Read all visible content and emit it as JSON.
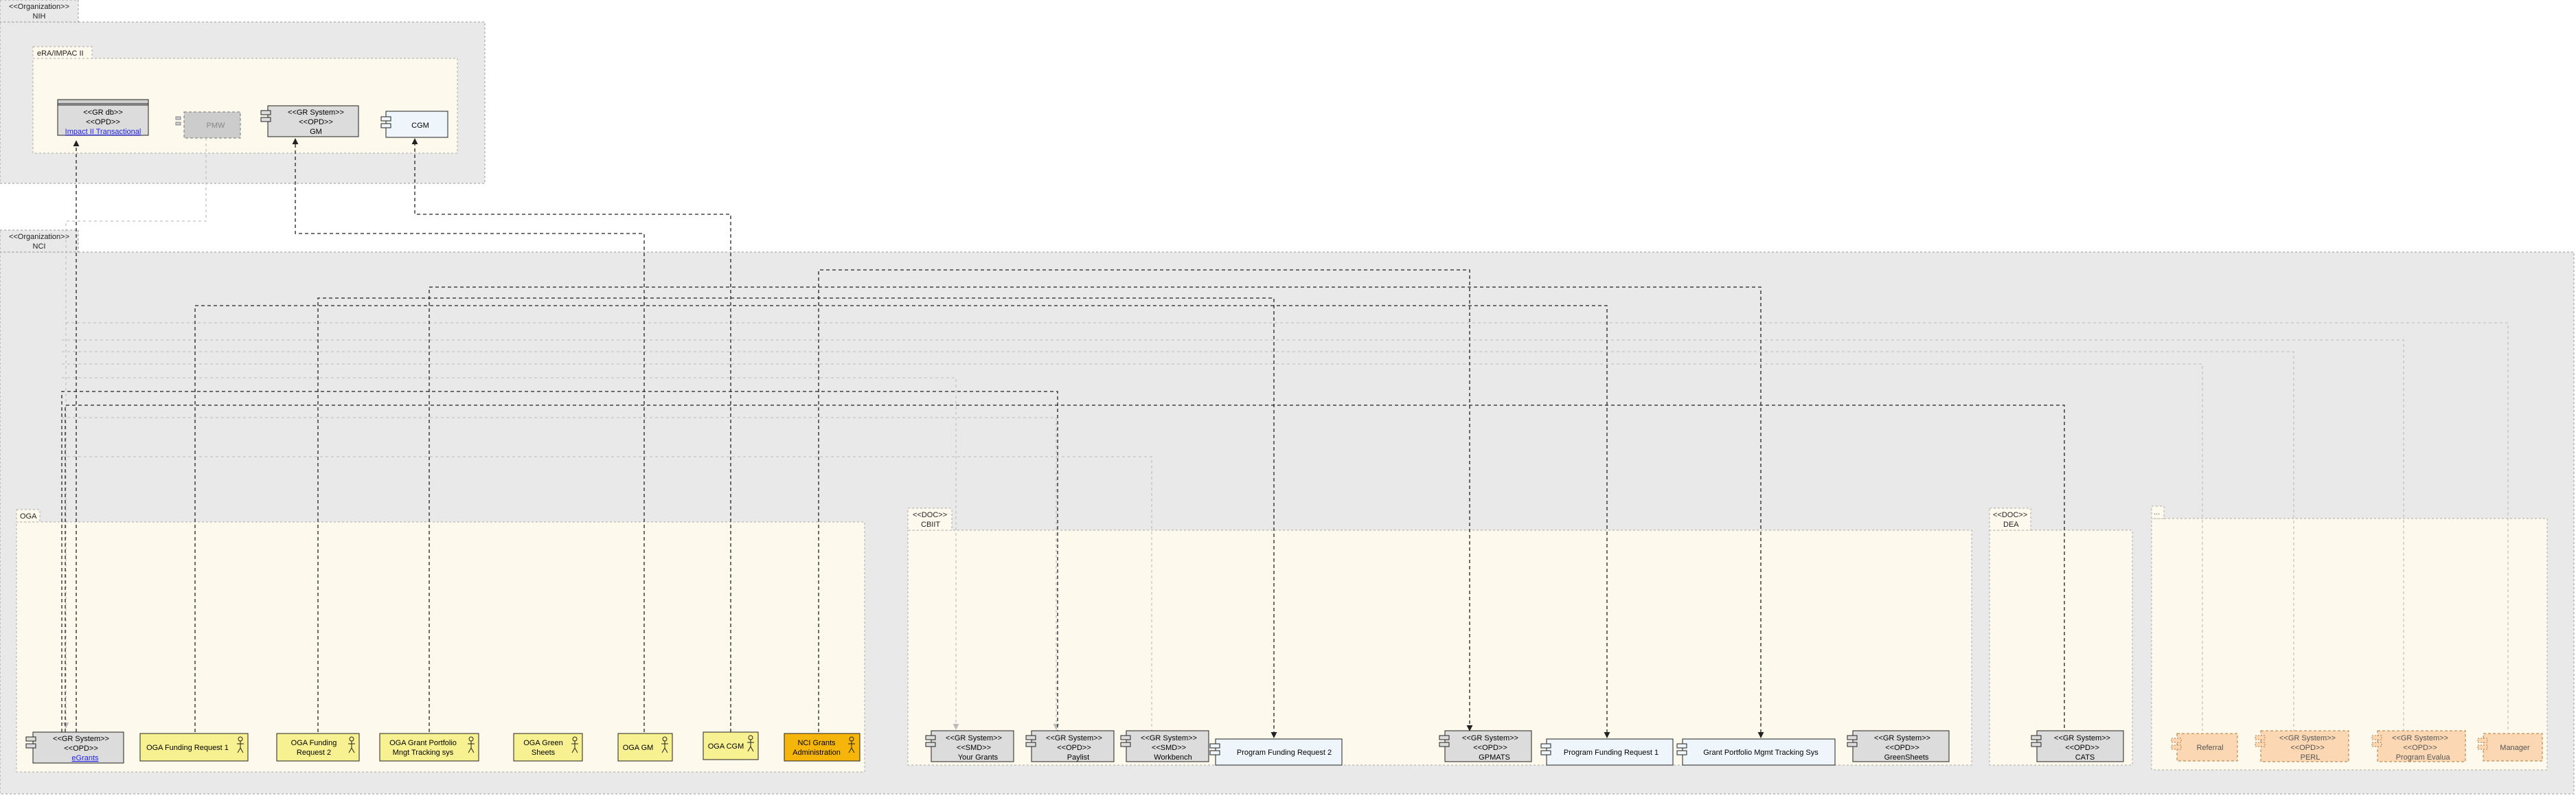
{
  "colors": {
    "org_fill": "#e9e9e9",
    "sub_fill": "#fdf9ec",
    "actor_fill": "#f8f191",
    "actor_highlight_fill": "#f5b50a",
    "component_fill": "#dcdcdc",
    "component_light_fill": "#eef6fb",
    "component_orange_fill": "#fbd7b4",
    "line": "#222222",
    "faint_line": "#bfbfbf"
  },
  "nih": {
    "tab": [
      "<<Organization>>",
      "NIH"
    ],
    "subgroup": {
      "tab": "eRA/IMPAC II",
      "items": [
        {
          "lines": [
            "<<GR db>>",
            "<<OPD>>"
          ],
          "link": "Impact II Transactional",
          "icon": "database-icon"
        },
        {
          "lines": [
            "PMW"
          ],
          "icon": "component-icon"
        },
        {
          "lines": [
            "<<GR System>>",
            "<<OPD>>",
            "GM"
          ],
          "icon": "component-icon"
        },
        {
          "lines": [
            "CGM"
          ],
          "icon": "component-icon"
        }
      ]
    }
  },
  "nci": {
    "tab": [
      "<<Organization>>",
      "NCI"
    ],
    "oga": {
      "tab": "OGA",
      "items": [
        {
          "lines": [
            "<<GR System>>",
            "<<OPD>>"
          ],
          "link": "eGrants",
          "icon": "component-icon"
        },
        {
          "lines": [
            "OGA Funding Request 1"
          ],
          "icon": "actor-icon"
        },
        {
          "lines": [
            "OGA Funding",
            "Request 2"
          ],
          "icon": "actor-icon"
        },
        {
          "lines": [
            "OGA Grant Portfolio",
            "Mngt Tracking sys"
          ],
          "icon": "actor-icon"
        },
        {
          "lines": [
            "OGA Green",
            "Sheets"
          ],
          "icon": "actor-icon"
        },
        {
          "lines": [
            "OGA GM"
          ],
          "icon": "actor-icon"
        },
        {
          "lines": [
            "OGA CGM"
          ],
          "icon": "actor-icon"
        },
        {
          "lines": [
            "NCI Grants",
            "Administration"
          ],
          "icon": "actor-icon"
        }
      ]
    },
    "cbiit": {
      "tab": [
        "<<DOC>>",
        "CBIIT"
      ],
      "items": [
        {
          "lines": [
            "<<GR System>>",
            "<<SMD>>",
            "Your Grants"
          ],
          "icon": "component-icon"
        },
        {
          "lines": [
            "<<GR System>>",
            "<<OPD>>",
            "Paylist"
          ],
          "icon": "component-icon"
        },
        {
          "lines": [
            "<<GR System>>",
            "<<SMD>>",
            "Workbench"
          ],
          "icon": "component-icon"
        },
        {
          "lines": [
            "Program Funding Request 2"
          ],
          "icon": "component-icon"
        },
        {
          "lines": [
            "<<GR System>>",
            "<<OPD>>",
            "GPMATS"
          ],
          "icon": "component-icon"
        },
        {
          "lines": [
            "Program Funding Request 1"
          ],
          "icon": "component-icon"
        },
        {
          "lines": [
            "Grant Portfolio Mgmt Tracking Sys"
          ],
          "icon": "component-icon"
        },
        {
          "lines": [
            "<<GR System>>",
            "<<OPD>>",
            "GreenSheets"
          ],
          "icon": "component-icon"
        }
      ]
    },
    "dea": {
      "tab": [
        "<<DOC>>",
        "DEA"
      ],
      "items": [
        {
          "lines": [
            "<<GR System>>",
            "<<OPD>>",
            "CATS"
          ],
          "icon": "component-icon"
        }
      ]
    },
    "other": {
      "tab": "...",
      "items": [
        {
          "lines": [
            "Referral"
          ],
          "icon": "component-icon"
        },
        {
          "lines": [
            "<<GR System>>",
            "<<OPD>>",
            "PERL"
          ],
          "icon": "component-icon"
        },
        {
          "lines": [
            "<<GR System>>",
            "<<OPD>>",
            "Program Evalua"
          ],
          "icon": "component-icon"
        },
        {
          "lines": [
            "Manager"
          ],
          "icon": "component-icon"
        }
      ]
    }
  }
}
